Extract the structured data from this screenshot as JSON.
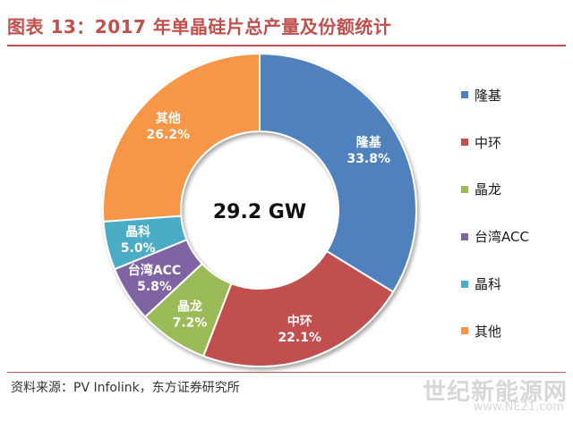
{
  "title": "图表 13：2017 年单晶硅片总产量及份额统计",
  "source": "资料来源：PV Infolink，东方证券研究所",
  "watermark": {
    "line1": "世纪新能源网",
    "line2": "www.NE21.com"
  },
  "chart_data": {
    "type": "pie",
    "donut": true,
    "center_label": "29.2 GW",
    "legend_position": "right",
    "slices": [
      {
        "name": "隆基",
        "value": 33.8,
        "label": "33.8%",
        "color": "#4f81bd"
      },
      {
        "name": "中环",
        "value": 22.1,
        "label": "22.1%",
        "color": "#c0504d"
      },
      {
        "name": "晶龙",
        "value": 7.2,
        "label": "7.2%",
        "color": "#9bbb59"
      },
      {
        "name": "台湾ACC",
        "value": 5.8,
        "label": "5.8%",
        "color": "#8064a2"
      },
      {
        "name": "晶科",
        "value": 5.0,
        "label": "5.0%",
        "color": "#4bacc6"
      },
      {
        "name": "其他",
        "value": 26.2,
        "label": "26.2%",
        "color": "#f79646"
      }
    ]
  }
}
